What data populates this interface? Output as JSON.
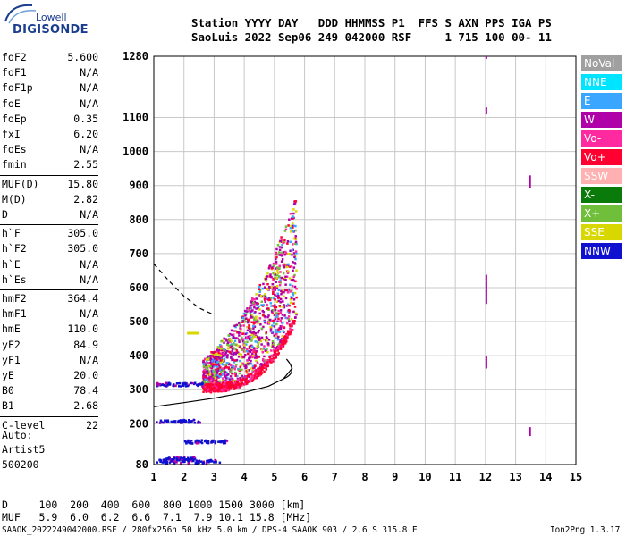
{
  "logo": {
    "company": "Lowell",
    "product": "DIGISONDE"
  },
  "header": {
    "row1": "Station YYYY DAY   DDD HHMMSS P1  FFS S AXN PPS IGA PS",
    "row2": "SaoLuis 2022 Sep06 249 042000 RSF     1 715 100 00- 11"
  },
  "params": [
    {
      "name": "foF2",
      "value": "5.600"
    },
    {
      "name": "foF1",
      "value": "N/A"
    },
    {
      "name": "foF1p",
      "value": "N/A"
    },
    {
      "name": "foE",
      "value": "N/A"
    },
    {
      "name": "foEp",
      "value": "0.35"
    },
    {
      "name": "fxI",
      "value": "6.20"
    },
    {
      "name": "foEs",
      "value": "N/A"
    },
    {
      "name": "fmin",
      "value": "2.55"
    },
    {
      "name": "MUF(D)",
      "value": "15.80"
    },
    {
      "name": "M(D)",
      "value": "2.82"
    },
    {
      "name": "D",
      "value": "N/A"
    },
    {
      "name": "h`F",
      "value": "305.0"
    },
    {
      "name": "h`F2",
      "value": "305.0"
    },
    {
      "name": "h`E",
      "value": "N/A"
    },
    {
      "name": "h`Es",
      "value": "N/A"
    },
    {
      "name": "hmF2",
      "value": "364.4"
    },
    {
      "name": "hmF1",
      "value": "N/A"
    },
    {
      "name": "hmE",
      "value": "110.0"
    },
    {
      "name": "yF2",
      "value": "84.9"
    },
    {
      "name": "yF1",
      "value": "N/A"
    },
    {
      "name": "yE",
      "value": "20.0"
    },
    {
      "name": "B0",
      "value": "78.4"
    },
    {
      "name": "B1",
      "value": "2.68"
    },
    {
      "name": "C-level",
      "value": "22"
    }
  ],
  "auto": {
    "line1": "Auto:",
    "line2": "Artist5",
    "line3": "500200"
  },
  "legend": [
    {
      "label": "NoVal",
      "color": "#a0a0a0"
    },
    {
      "label": "NNE",
      "color": "#00e5ff"
    },
    {
      "label": "E",
      "color": "#3aa6ff"
    },
    {
      "label": "W",
      "color": "#b000a8"
    },
    {
      "label": "Vo-",
      "color": "#ff2aa0"
    },
    {
      "label": "Vo+",
      "color": "#ff0030"
    },
    {
      "label": "SSW",
      "color": "#ffb0b0"
    },
    {
      "label": "X-",
      "color": "#0a7a0a"
    },
    {
      "label": "X+",
      "color": "#6fbf3a"
    },
    {
      "label": "SSE",
      "color": "#d8d800"
    },
    {
      "label": "NNW",
      "color": "#1010d0"
    }
  ],
  "mufTable": {
    "row1": "D     100  200  400  600  800 1000 1500 3000 [km]",
    "row2": "MUF   5.9  6.0  6.2  6.6  7.1  7.9 10.1 15.8 [MHz]"
  },
  "footer": {
    "left": "SAAOK_2022249042000.RSF / 280fx256h 50 kHz 5.0 km / DPS-4 SAAOK 903 / 2.6 S 315.8 E",
    "right": "Ion2Png 1.3.17"
  },
  "chart_data": {
    "type": "scatter",
    "xlabel": "",
    "ylabel": "",
    "xlim": [
      1,
      15
    ],
    "ylim": [
      80,
      1280
    ],
    "x_ticks": [
      1,
      2,
      3,
      4,
      5,
      6,
      7,
      8,
      9,
      10,
      11,
      12,
      13,
      14,
      15
    ],
    "y_ticks": [
      80,
      200,
      300,
      400,
      500,
      600,
      700,
      800,
      900,
      1000,
      1100,
      1280
    ],
    "grid": true,
    "trace": [
      {
        "f": 2.55,
        "h": 305
      },
      {
        "f": 3.0,
        "h": 308
      },
      {
        "f": 3.5,
        "h": 312
      },
      {
        "f": 4.0,
        "h": 318
      },
      {
        "f": 4.5,
        "h": 328
      },
      {
        "f": 5.0,
        "h": 345
      },
      {
        "f": 5.3,
        "h": 365
      },
      {
        "f": 5.5,
        "h": 395
      },
      {
        "f": 5.6,
        "h": 430
      },
      {
        "f": 5.65,
        "h": 480
      }
    ],
    "profile_curve": [
      {
        "f": 1.0,
        "h": 250
      },
      {
        "f": 2.0,
        "h": 262
      },
      {
        "f": 3.0,
        "h": 275
      },
      {
        "f": 4.0,
        "h": 292
      },
      {
        "f": 4.8,
        "h": 310
      },
      {
        "f": 5.3,
        "h": 332
      },
      {
        "f": 5.6,
        "h": 364
      }
    ],
    "dashed_curve": [
      {
        "f": 1.0,
        "h": 670
      },
      {
        "f": 1.5,
        "h": 620
      },
      {
        "f": 2.0,
        "h": 575
      },
      {
        "f": 2.5,
        "h": 540
      },
      {
        "f": 3.0,
        "h": 520
      }
    ]
  }
}
